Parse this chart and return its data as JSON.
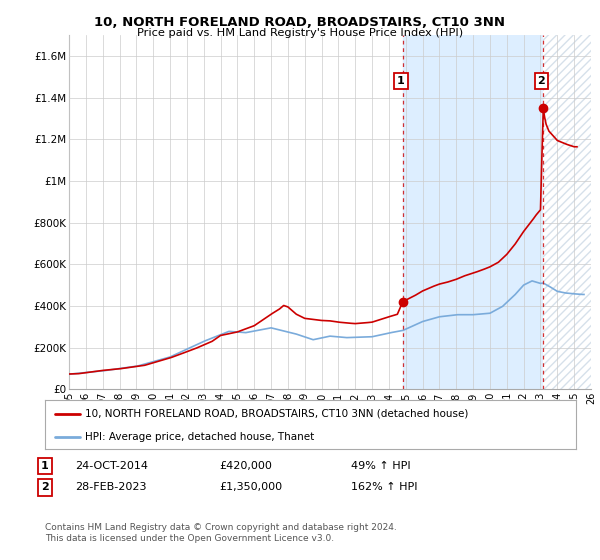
{
  "title": "10, NORTH FORELAND ROAD, BROADSTAIRS, CT10 3NN",
  "subtitle": "Price paid vs. HM Land Registry's House Price Index (HPI)",
  "ylim": [
    0,
    1700000
  ],
  "yticks": [
    0,
    200000,
    400000,
    600000,
    800000,
    1000000,
    1200000,
    1400000,
    1600000
  ],
  "ytick_labels": [
    "£0",
    "£200K",
    "£400K",
    "£600K",
    "£800K",
    "£1M",
    "£1.2M",
    "£1.4M",
    "£1.6M"
  ],
  "xlim_start": 1995.0,
  "xlim_end": 2026.0,
  "xticks": [
    1995,
    1996,
    1997,
    1998,
    1999,
    2000,
    2001,
    2002,
    2003,
    2004,
    2005,
    2006,
    2007,
    2008,
    2009,
    2010,
    2011,
    2012,
    2013,
    2014,
    2015,
    2016,
    2017,
    2018,
    2019,
    2020,
    2021,
    2022,
    2023,
    2024,
    2025,
    2026
  ],
  "house_color": "#cc0000",
  "hpi_color": "#7aabdb",
  "sale1_x": 2014.82,
  "sale1_y": 420000,
  "sale2_x": 2023.16,
  "sale2_y": 1350000,
  "vline1_x": 2014.82,
  "vline2_x": 2023.16,
  "legend_house": "10, NORTH FORELAND ROAD, BROADSTAIRS, CT10 3NN (detached house)",
  "legend_hpi": "HPI: Average price, detached house, Thanet",
  "annotation1_label": "1",
  "annotation1_date": "24-OCT-2014",
  "annotation1_price": "£420,000",
  "annotation1_pct": "49% ↑ HPI",
  "annotation2_label": "2",
  "annotation2_date": "28-FEB-2023",
  "annotation2_price": "£1,350,000",
  "annotation2_pct": "162% ↑ HPI",
  "footer": "Contains HM Land Registry data © Crown copyright and database right 2024.\nThis data is licensed under the Open Government Licence v3.0.",
  "background_color": "#ffffff",
  "grid_color": "#cccccc",
  "shade_between_color": "#ddeeff",
  "hatch_color": "#cccccc"
}
